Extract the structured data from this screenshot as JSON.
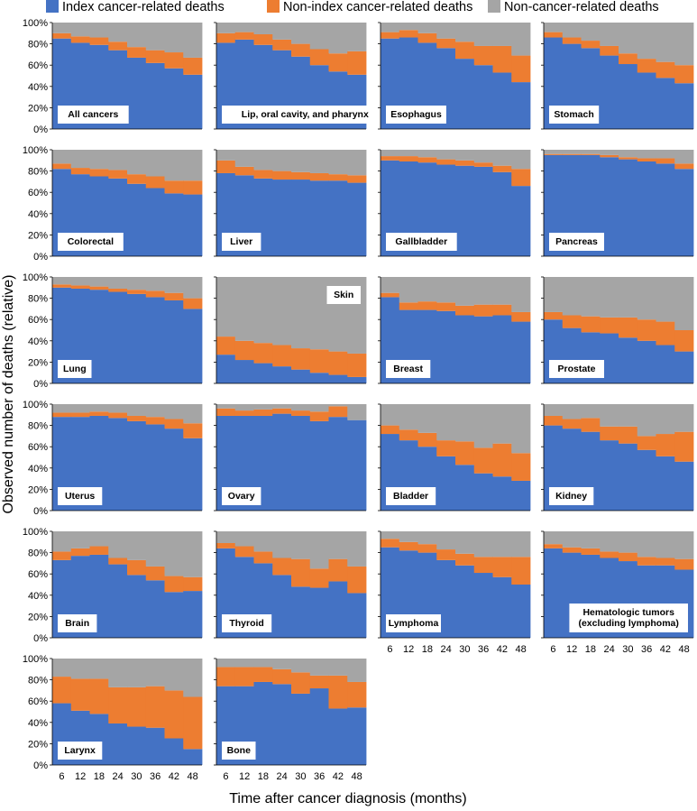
{
  "figure": {
    "ylabel": "Observed number of deaths (relative)",
    "xlabel": "Time after cancer diagnosis (months)"
  },
  "legend": [
    {
      "label": "Index cancer-related deaths",
      "color": "#4472C4"
    },
    {
      "label": "Non-index cancer-related deaths",
      "color": "#ED7D31"
    },
    {
      "label": "Non-cancer-related deaths",
      "color": "#A5A5A5"
    }
  ],
  "chart_data": {
    "type": "area",
    "stacking": "percent",
    "x": [
      6,
      12,
      18,
      24,
      30,
      36,
      42,
      48
    ],
    "x_ticks": [
      "6",
      "12",
      "18",
      "24",
      "30",
      "36",
      "42",
      "48"
    ],
    "y_ticks": [
      "0%",
      "20%",
      "40%",
      "60%",
      "80%",
      "100%"
    ],
    "ylim": [
      0,
      100
    ],
    "grid": false,
    "series_names": [
      "Index cancer-related deaths",
      "Non-index cancer-related deaths",
      "Non-cancer-related deaths"
    ],
    "panels": [
      {
        "title": "All cancers",
        "label_pos": "bottom-left",
        "index": [
          85,
          81,
          79,
          74,
          67,
          62,
          57,
          51
        ],
        "nonindex": [
          5,
          6,
          7,
          8,
          10,
          12,
          15,
          16
        ]
      },
      {
        "title": "Lip, oral cavity, and pharynx",
        "label_pos": "bottom-left",
        "index": [
          81,
          84,
          79,
          74,
          68,
          60,
          54,
          51
        ],
        "nonindex": [
          9,
          7,
          10,
          10,
          12,
          15,
          17,
          22
        ]
      },
      {
        "title": "Esophagus",
        "label_pos": "bottom-left",
        "index": [
          85,
          86,
          81,
          76,
          66,
          60,
          53,
          44
        ],
        "nonindex": [
          6,
          7,
          9,
          9,
          16,
          18,
          25,
          25
        ]
      },
      {
        "title": "Stomach",
        "label_pos": "bottom-left",
        "index": [
          86,
          80,
          76,
          69,
          61,
          53,
          48,
          43
        ],
        "nonindex": [
          5,
          6,
          7,
          9,
          10,
          13,
          15,
          17
        ]
      },
      {
        "title": "Colorectal",
        "label_pos": "bottom-left",
        "index": [
          82,
          77,
          75,
          73,
          68,
          64,
          59,
          58
        ],
        "nonindex": [
          5,
          6,
          7,
          8,
          9,
          11,
          12,
          13
        ]
      },
      {
        "title": "Liver",
        "label_pos": "bottom-left",
        "index": [
          78,
          76,
          73,
          72,
          72,
          71,
          71,
          69
        ],
        "nonindex": [
          12,
          8,
          8,
          8,
          7,
          7,
          6,
          7
        ]
      },
      {
        "title": "Gallbladder",
        "label_pos": "bottom-left",
        "index": [
          90,
          89,
          88,
          86,
          85,
          84,
          79,
          66
        ],
        "nonindex": [
          4,
          5,
          5,
          5,
          5,
          4,
          6,
          16
        ]
      },
      {
        "title": "Pancreas",
        "label_pos": "bottom-left",
        "index": [
          95,
          95,
          95,
          93,
          91,
          89,
          87,
          82
        ],
        "nonindex": [
          1,
          1,
          1,
          2,
          2,
          3,
          5,
          5
        ]
      },
      {
        "title": "Lung",
        "label_pos": "bottom-left",
        "index": [
          90,
          89,
          88,
          86,
          84,
          81,
          78,
          70
        ],
        "nonindex": [
          3,
          3,
          3,
          3,
          4,
          6,
          7,
          10
        ]
      },
      {
        "title": "Skin",
        "label_pos": "top-right",
        "index": [
          27,
          22,
          19,
          16,
          13,
          10,
          8,
          6
        ],
        "nonindex": [
          17,
          18,
          19,
          20,
          20,
          22,
          22,
          22
        ]
      },
      {
        "title": "Breast",
        "label_pos": "bottom-left",
        "index": [
          81,
          69,
          69,
          68,
          64,
          63,
          64,
          58
        ],
        "nonindex": [
          4,
          7,
          8,
          8,
          9,
          11,
          10,
          9
        ]
      },
      {
        "title": "Prostate",
        "label_pos": "bottom-left",
        "index": [
          60,
          52,
          48,
          47,
          43,
          40,
          36,
          30
        ],
        "nonindex": [
          7,
          12,
          15,
          15,
          19,
          20,
          22,
          20
        ]
      },
      {
        "title": "Uterus",
        "label_pos": "bottom-left",
        "index": [
          88,
          88,
          89,
          87,
          84,
          81,
          77,
          68
        ],
        "nonindex": [
          4,
          4,
          4,
          5,
          5,
          7,
          9,
          14
        ]
      },
      {
        "title": "Ovary",
        "label_pos": "bottom-left",
        "index": [
          89,
          89,
          89,
          91,
          89,
          84,
          88,
          85
        ],
        "nonindex": [
          7,
          5,
          6,
          5,
          5,
          9,
          10,
          0
        ]
      },
      {
        "title": "Bladder",
        "label_pos": "bottom-left",
        "index": [
          72,
          66,
          60,
          51,
          43,
          35,
          32,
          28
        ],
        "nonindex": [
          8,
          10,
          13,
          15,
          22,
          24,
          31,
          26
        ]
      },
      {
        "title": "Kidney",
        "label_pos": "bottom-left",
        "index": [
          80,
          77,
          74,
          66,
          63,
          57,
          51,
          46
        ],
        "nonindex": [
          9,
          9,
          13,
          13,
          16,
          13,
          21,
          28
        ]
      },
      {
        "title": "Brain",
        "label_pos": "bottom-left",
        "index": [
          73,
          77,
          78,
          69,
          59,
          54,
          43,
          44
        ],
        "nonindex": [
          8,
          7,
          8,
          6,
          14,
          13,
          15,
          13
        ]
      },
      {
        "title": "Thyroid",
        "label_pos": "bottom-left",
        "index": [
          84,
          76,
          70,
          59,
          48,
          47,
          53,
          42
        ],
        "nonindex": [
          5,
          10,
          11,
          16,
          26,
          18,
          21,
          25
        ]
      },
      {
        "title": "Lymphoma",
        "label_pos": "bottom-left",
        "index": [
          85,
          82,
          80,
          73,
          68,
          61,
          57,
          50
        ],
        "nonindex": [
          8,
          8,
          8,
          10,
          11,
          15,
          19,
          26
        ]
      },
      {
        "title": "Hematologic tumors (excluding lymphoma)",
        "label_pos": "bottom-right",
        "index": [
          84,
          80,
          78,
          75,
          72,
          68,
          68,
          64
        ],
        "nonindex": [
          4,
          5,
          6,
          6,
          8,
          8,
          7,
          10
        ]
      },
      {
        "title": "Larynx",
        "label_pos": "bottom-left",
        "index": [
          58,
          51,
          48,
          39,
          36,
          35,
          25,
          15
        ],
        "nonindex": [
          25,
          30,
          33,
          34,
          37,
          39,
          45,
          49
        ]
      },
      {
        "title": "Bone",
        "label_pos": "bottom-left",
        "index": [
          74,
          74,
          78,
          76,
          67,
          72,
          53,
          54
        ],
        "nonindex": [
          18,
          18,
          14,
          14,
          20,
          12,
          31,
          24
        ]
      }
    ]
  }
}
